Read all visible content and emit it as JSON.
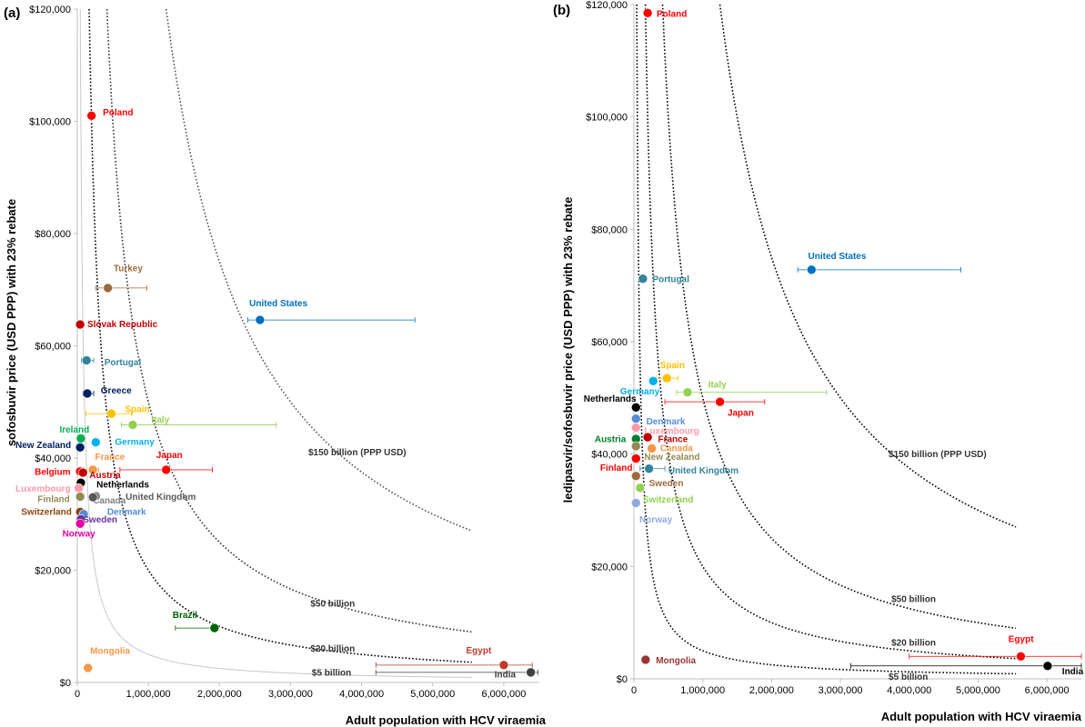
{
  "chart_data": [
    {
      "type": "scatter",
      "panel_label": "(a)",
      "xlabel": "Adult population with HCV viraemia",
      "ylabel": "sofosbuvir price (USD PPP)  with  23% rebate",
      "xlim": [
        0,
        6500000
      ],
      "ylim": [
        0,
        120000
      ],
      "x_ticks": [
        0,
        1000000,
        2000000,
        3000000,
        4000000,
        5000000,
        6000000
      ],
      "x_tick_labels": [
        "0",
        "1,000,000",
        "2,000,000",
        "3,000,000",
        "4,000,000",
        "5,000,000",
        "6,000,000"
      ],
      "y_ticks": [
        0,
        20000,
        40000,
        60000,
        80000,
        100000,
        120000
      ],
      "y_tick_labels": [
        "$0",
        "$20,000",
        "$40,000",
        "$60,000",
        "$80,000",
        "$100,000",
        "$120,000"
      ],
      "curves": [
        {
          "label": "$5 billion",
          "total": 5000000000,
          "style": "solid",
          "color": "#c8c8c8",
          "label_x": 3300000,
          "label_y": 1200
        },
        {
          "label": "$20 billion",
          "total": 20000000000,
          "style": "dotted",
          "color": "#000000",
          "label_x": 3280000,
          "label_y": 5500
        },
        {
          "label": "$50 billion",
          "total": 50000000000,
          "style": "dotted",
          "color": "#333333",
          "label_x": 3280000,
          "label_y": 13500
        },
        {
          "label": "$150 billion (PPP USD)",
          "total": 150000000000,
          "style": "dotted",
          "color": "#555555",
          "label_x": 3250000,
          "label_y": 40500
        }
      ],
      "points": [
        {
          "label": "Poland",
          "x": 200000,
          "y": 101000,
          "color": "#ff0000",
          "lx": 360000,
          "ly": 101500
        },
        {
          "label": "Turkey",
          "x": 430000,
          "y": 70300,
          "color": "#9c6b3c",
          "err": [
            260000,
            980000
          ],
          "lx": 510000,
          "ly": 73800
        },
        {
          "label": "United States",
          "x": 2570000,
          "y": 64600,
          "color": "#0070c0",
          "err": [
            2400000,
            4750000
          ],
          "lx": 2420000,
          "ly": 67500
        },
        {
          "label": "Slovak Republic",
          "x": 40000,
          "y": 63800,
          "color": "#c00000",
          "lx": 140000,
          "ly": 63800
        },
        {
          "label": "Portugal",
          "x": 130000,
          "y": 57400,
          "color": "#31849b",
          "err": [
            60000,
            230000
          ],
          "lx": 380000,
          "ly": 57000
        },
        {
          "label": "Greece",
          "x": 140000,
          "y": 51500,
          "color": "#002060",
          "err": [
            80000,
            230000
          ],
          "lx": 330000,
          "ly": 52000
        },
        {
          "label": "Spain",
          "x": 480000,
          "y": 47900,
          "color": "#ffc000",
          "err": [
            120000,
            760000
          ],
          "lx": 670000,
          "ly": 48700
        },
        {
          "label": "Ireland",
          "x": 50000,
          "y": 43500,
          "color": "#00b050",
          "lx": -250000,
          "ly": 45000
        },
        {
          "label": "Italy",
          "x": 780000,
          "y": 45900,
          "color": "#92d050",
          "err": [
            620000,
            2800000
          ],
          "lx": 1040000,
          "ly": 46800
        },
        {
          "label": "New Zealand",
          "x": 40000,
          "y": 41900,
          "color": "#002060",
          "lx": -870000,
          "ly": 42300
        },
        {
          "label": "Germany",
          "x": 260000,
          "y": 42800,
          "color": "#00b0f0",
          "lx": 530000,
          "ly": 42800
        },
        {
          "label": "France",
          "x": 220000,
          "y": 37900,
          "color": "#f79646",
          "err": [
            100000,
            300000
          ],
          "lx": 250000,
          "ly": 40200
        },
        {
          "label": "Japan",
          "x": 1250000,
          "y": 37900,
          "color": "#ff0000",
          "err": [
            600000,
            1900000
          ],
          "lx": 1110000,
          "ly": 40500
        },
        {
          "label": "Belgium",
          "x": 40000,
          "y": 37600,
          "color": "#ff0000",
          "lx": -600000,
          "ly": 37500
        },
        {
          "label": "Austria",
          "x": 80000,
          "y": 37400,
          "color": "#c00000",
          "lx": 170000,
          "ly": 36900
        },
        {
          "label": "Netherlands",
          "x": 50000,
          "y": 35600,
          "color": "#000000",
          "lx": 270000,
          "ly": 35200
        },
        {
          "label": "Luxembourg",
          "x": 20000,
          "y": 34600,
          "color": "#ff99a9",
          "lx": -870000,
          "ly": 34500
        },
        {
          "label": "Finland",
          "x": 40000,
          "y": 33100,
          "color": "#948a54",
          "lx": -560000,
          "ly": 32600
        },
        {
          "label": "Canada",
          "x": 260000,
          "y": 33200,
          "color": "#7f7f7f",
          "lx": 220000,
          "ly": 32400
        },
        {
          "label": "United Kingdom",
          "x": 220000,
          "y": 33000,
          "color": "#595959",
          "lx": 680000,
          "ly": 33000
        },
        {
          "label": "Switzerland",
          "x": 40000,
          "y": 30400,
          "color": "#8b4513",
          "lx": -790000,
          "ly": 30400
        },
        {
          "label": "Denmark",
          "x": 90000,
          "y": 30000,
          "color": "#548dd4",
          "lx": 420000,
          "ly": 30400
        },
        {
          "label": "Sweden",
          "x": 50000,
          "y": 29100,
          "color": "#7030a0",
          "lx": 80000,
          "ly": 29000
        },
        {
          "label": "Norway",
          "x": 40000,
          "y": 28300,
          "color": "#e000a0",
          "lx": -210000,
          "ly": 26500
        },
        {
          "label": "Brazil",
          "x": 1930000,
          "y": 9700,
          "color": "#006400",
          "err": [
            1380000,
            1930000
          ],
          "lx": 1340000,
          "ly": 12000
        },
        {
          "label": "Mongolia",
          "x": 150000,
          "y": 2600,
          "color": "#f79646",
          "lx": 180000,
          "ly": 5600
        },
        {
          "label": "Egypt",
          "x": 6000000,
          "y": 3100,
          "color": "#c0392b",
          "err": [
            4200000,
            6400000
          ],
          "lx": 5470000,
          "ly": 5700
        },
        {
          "label": "India",
          "x": 6380000,
          "y": 1800,
          "color": "#404040",
          "err": [
            4200000,
            6480000
          ],
          "lx": 5870000,
          "ly": 1400
        }
      ]
    },
    {
      "type": "scatter",
      "panel_label": "(b)",
      "xlabel": "Adult population with HCV viraemia",
      "ylabel": "ledipasvir/sofosbuvir price (USD PPP)  with  23% rebate",
      "xlim": [
        0,
        6500000
      ],
      "ylim": [
        0,
        120000
      ],
      "x_ticks": [
        0,
        1000000,
        2000000,
        3000000,
        4000000,
        5000000,
        6000000
      ],
      "x_tick_labels": [
        "0",
        "1,000,000",
        "2,000,000",
        "3,000,000",
        "4,000,000",
        "5,000,000",
        "6,000,000"
      ],
      "y_ticks": [
        0,
        20000,
        40000,
        60000,
        80000,
        100000,
        120000
      ],
      "y_tick_labels": [
        "$0",
        "$20,000",
        "$40,000",
        "$60,000",
        "$80,000",
        "$100,000",
        "$120,000"
      ],
      "curves": [
        {
          "label": "$5 billion",
          "total": 5000000000,
          "style": "dotted",
          "color": "#000000",
          "label_x": 3700000,
          "label_y": -200
        },
        {
          "label": "$20 billion",
          "total": 20000000000,
          "style": "dotted",
          "color": "#000000",
          "label_x": 3740000,
          "label_y": 5900
        },
        {
          "label": "$50 billion",
          "total": 50000000000,
          "style": "dotted",
          "color": "#000000",
          "label_x": 3740000,
          "label_y": 13700
        },
        {
          "label": "$150 billion (PPP USD)",
          "total": 150000000000,
          "style": "dotted",
          "color": "#000000",
          "label_x": 3700000,
          "label_y": 39500
        }
      ],
      "points": [
        {
          "label": "Poland",
          "x": 200000,
          "y": 118500,
          "color": "#ff0000",
          "lx": 330000,
          "ly": 118300
        },
        {
          "label": "United States",
          "x": 2580000,
          "y": 72800,
          "color": "#0070c0",
          "err": [
            2380000,
            4750000
          ],
          "lx": 2530000,
          "ly": 75200
        },
        {
          "label": "Portugal",
          "x": 130000,
          "y": 71200,
          "color": "#31849b",
          "lx": 270000,
          "ly": 71100
        },
        {
          "label": "Spain",
          "x": 480000,
          "y": 53500,
          "color": "#ffc000",
          "err": [
            320000,
            640000
          ],
          "lx": 380000,
          "ly": 55800
        },
        {
          "label": "Germany",
          "x": 280000,
          "y": 53000,
          "color": "#00b0f0",
          "lx": -200000,
          "ly": 51100
        },
        {
          "label": "Italy",
          "x": 780000,
          "y": 51000,
          "color": "#92d050",
          "err": [
            620000,
            2800000
          ],
          "lx": 1080000,
          "ly": 52300
        },
        {
          "label": "Netherlands",
          "x": 30000,
          "y": 48300,
          "color": "#000000",
          "lx": -730000,
          "ly": 49800
        },
        {
          "label": "Japan",
          "x": 1250000,
          "y": 49300,
          "color": "#ff0000",
          "err": [
            450000,
            1900000
          ],
          "lx": 1360000,
          "ly": 47300
        },
        {
          "label": "Denmark",
          "x": 30000,
          "y": 46300,
          "color": "#548dd4",
          "lx": 180000,
          "ly": 45800
        },
        {
          "label": "Luxembourg",
          "x": 30000,
          "y": 44700,
          "color": "#ff99a9",
          "lx": 150000,
          "ly": 44100
        },
        {
          "label": "Austria",
          "x": 30000,
          "y": 42700,
          "color": "#00802b",
          "lx": -570000,
          "ly": 42600
        },
        {
          "label": "France",
          "x": 200000,
          "y": 43000,
          "color": "#c00000",
          "lx": 350000,
          "ly": 42600
        },
        {
          "label": "Canada",
          "x": 260000,
          "y": 41000,
          "color": "#f79646",
          "lx": 380000,
          "ly": 41000
        },
        {
          "label": "New Zealand",
          "x": 30000,
          "y": 41400,
          "color": "#948a54",
          "lx": 150000,
          "ly": 39500
        },
        {
          "label": "Finland",
          "x": 30000,
          "y": 39200,
          "color": "#ff0000",
          "lx": -490000,
          "ly": 37500
        },
        {
          "label": "United Kingdom",
          "x": 220000,
          "y": 37400,
          "color": "#31849b",
          "err": [
            90000,
            450000
          ],
          "lx": 500000,
          "ly": 37000
        },
        {
          "label": "Sweden",
          "x": 30000,
          "y": 36100,
          "color": "#9c6b3c",
          "lx": 220000,
          "ly": 34800
        },
        {
          "label": "Switzerland",
          "x": 90000,
          "y": 34000,
          "color": "#92d050",
          "lx": 130000,
          "ly": 31900
        },
        {
          "label": "Norway",
          "x": 30000,
          "y": 31300,
          "color": "#8eaadb",
          "lx": 80000,
          "ly": 28300
        },
        {
          "label": "Mongolia",
          "x": 170000,
          "y": 3400,
          "color": "#993333",
          "lx": 320000,
          "ly": 3200
        },
        {
          "label": "Egypt",
          "x": 5620000,
          "y": 4000,
          "color": "#ff0000",
          "err": [
            4000000,
            6500000
          ],
          "lx": 5440000,
          "ly": 7000
        },
        {
          "label": "India",
          "x": 6010000,
          "y": 2300,
          "color": "#000000",
          "err": [
            3150000,
            6500000
          ],
          "lx": 6220000,
          "ly": 1300
        }
      ]
    }
  ]
}
